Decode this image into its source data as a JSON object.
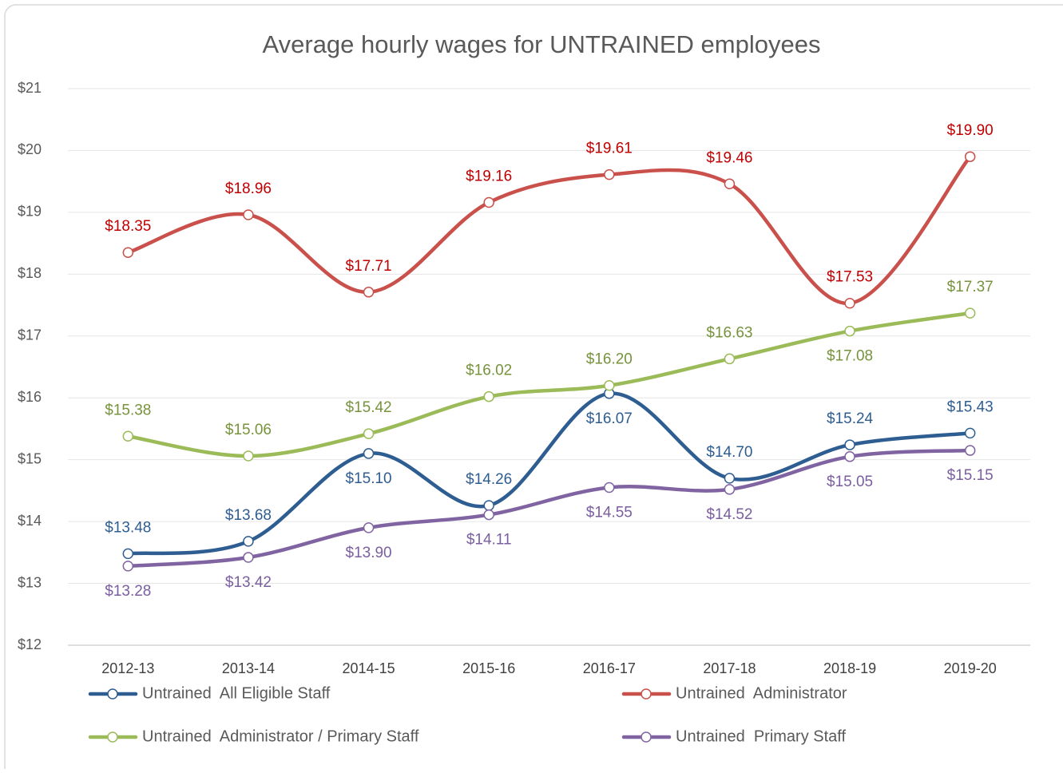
{
  "chart_data": {
    "type": "line",
    "title": "Average hourly wages for UNTRAINED employees",
    "categories": [
      "2012-13",
      "2013-14",
      "2014-15",
      "2015-16",
      "2016-17",
      "2017-18",
      "2018-19",
      "2019-20"
    ],
    "ylim": [
      12,
      21
    ],
    "yticks": [
      {
        "value": 12,
        "label": "$12"
      },
      {
        "value": 13,
        "label": "$13"
      },
      {
        "value": 14,
        "label": "$14"
      },
      {
        "value": 15,
        "label": "$15"
      },
      {
        "value": 16,
        "label": "$16"
      },
      {
        "value": 17,
        "label": "$17"
      },
      {
        "value": 18,
        "label": "$18"
      },
      {
        "value": 19,
        "label": "$19"
      },
      {
        "value": 20,
        "label": "$20"
      },
      {
        "value": 21,
        "label": "$21"
      }
    ],
    "grid": true,
    "smooth": true,
    "legend": "bottom",
    "series": [
      {
        "name": "Untrained  All Eligible Staff",
        "color": "#2e5d91",
        "label_color": "#2e5d91",
        "values": [
          13.48,
          13.68,
          15.1,
          14.26,
          16.07,
          14.7,
          15.24,
          15.43
        ],
        "value_labels": [
          "$13.48",
          "$13.68",
          "$15.10",
          "$14.26",
          "$16.07",
          "$14.70",
          "$15.24",
          "$15.43"
        ]
      },
      {
        "name": "Untrained  Administrator",
        "color": "#c9504b",
        "label_color": "#c00000",
        "values": [
          18.35,
          18.96,
          17.71,
          19.16,
          19.61,
          19.46,
          17.53,
          19.9
        ],
        "value_labels": [
          "$18.35",
          "$18.96",
          "$17.71",
          "$19.16",
          "$19.61",
          "$19.46",
          "$17.53",
          "$19.90"
        ]
      },
      {
        "name": "Untrained  Administrator / Primary Staff",
        "color": "#9bbb59",
        "label_color": "#77933c",
        "values": [
          15.38,
          15.06,
          15.42,
          16.02,
          16.2,
          16.63,
          17.08,
          17.37
        ],
        "value_labels": [
          "$15.38",
          "$15.06",
          "$15.42",
          "$16.02",
          "$16.20",
          "$16.63",
          "$17.08",
          "$17.37"
        ]
      },
      {
        "name": "Untrained  Primary Staff",
        "color": "#8064a2",
        "label_color": "#7a5ea0",
        "values": [
          13.28,
          13.42,
          13.9,
          14.11,
          14.55,
          14.52,
          15.05,
          15.15
        ],
        "value_labels": [
          "$13.28",
          "$13.42",
          "$13.90",
          "$14.11",
          "$14.55",
          "$14.52",
          "$15.05",
          "$15.15"
        ]
      }
    ]
  }
}
